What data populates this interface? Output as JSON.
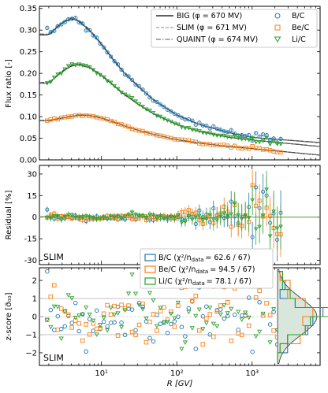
{
  "chart_data": [
    {
      "type": "scatter",
      "panel": "top",
      "ylabel": "Flux ratio [-]",
      "xscale": "log",
      "xlim": [
        1.5,
        8000
      ],
      "ylim": [
        0.0,
        0.355
      ],
      "yticks": [
        "0.00",
        "0.05",
        "0.10",
        "0.15",
        "0.20",
        "0.25",
        "0.30",
        "0.35"
      ],
      "models": [
        {
          "name": "BIG (φ = 670 MV)",
          "style": "solid"
        },
        {
          "name": "SLIM (φ = 671 MV)",
          "style": "dashed"
        },
        {
          "name": "QUAINT (φ = 674 MV)",
          "style": "dashdot"
        }
      ],
      "series": [
        {
          "name": "B/C",
          "color": "#1f77b4",
          "marker": "circle",
          "x": [
            2,
            3,
            4,
            5,
            7,
            10,
            15,
            20,
            30,
            50,
            100,
            200,
            500,
            1000,
            2000
          ],
          "y": [
            0.29,
            0.318,
            0.328,
            0.322,
            0.3,
            0.268,
            0.228,
            0.202,
            0.172,
            0.138,
            0.104,
            0.082,
            0.063,
            0.052,
            0.048
          ]
        },
        {
          "name": "Be/C",
          "color": "#ff7f0e",
          "marker": "square",
          "x": [
            2,
            3,
            4,
            5,
            7,
            10,
            15,
            20,
            30,
            50,
            100,
            200,
            500,
            1000
          ],
          "y": [
            0.091,
            0.097,
            0.101,
            0.104,
            0.103,
            0.097,
            0.087,
            0.079,
            0.069,
            0.059,
            0.047,
            0.039,
            0.031,
            0.026
          ]
        },
        {
          "name": "Li/C",
          "color": "#2ca02c",
          "marker": "triangle-down",
          "x": [
            2,
            3,
            4,
            5,
            7,
            10,
            15,
            20,
            30,
            50,
            100,
            200,
            500,
            1000,
            2000
          ],
          "y": [
            0.178,
            0.205,
            0.218,
            0.221,
            0.214,
            0.196,
            0.17,
            0.152,
            0.13,
            0.106,
            0.082,
            0.066,
            0.052,
            0.046,
            0.041
          ]
        }
      ],
      "legend": "top-right"
    },
    {
      "type": "scatter",
      "panel": "middle",
      "ylabel": "Residual [%]",
      "ylim": [
        -33,
        36
      ],
      "yticks": [
        "-30",
        "-15",
        "0",
        "15",
        "30"
      ],
      "annotation": "SLIM"
    },
    {
      "type": "scatter",
      "panel": "bottom",
      "ylabel": "z-score [σ̃₀₀]",
      "xlabel": "R [GV]",
      "xticks": [
        "10¹",
        "10²",
        "10³"
      ],
      "ylim": [
        -2.7,
        2.7
      ],
      "yticks": [
        "−2",
        "−1",
        "0",
        "1",
        "2"
      ],
      "annotation": "SLIM",
      "legend_entries": [
        {
          "label": "B/C (χ²/n_data = 62.6 / 67)",
          "color": "#1f77b4"
        },
        {
          "label": "Be/C (χ²/n_data = 94.5 / 67)",
          "color": "#ff7f0e"
        },
        {
          "label": "Li/C (χ²/n_data = 78.1 / 67)",
          "color": "#2ca02c"
        }
      ]
    }
  ],
  "text": {
    "top_ylabel": "Flux ratio [-]",
    "mid_ylabel": "Residual [%]",
    "bot_ylabel": "z-score [σ̃₀₀]",
    "xlabel": "R [GV]",
    "mid_tag": "SLIM",
    "bot_tag": "SLIM",
    "leg_big": "BIG (φ = 670 MV)",
    "leg_slim": "SLIM (φ = 671 MV)",
    "leg_quaint": "QUAINT (φ = 674 MV)",
    "leg_bc": "B/C",
    "leg_bec": "Be/C",
    "leg_lic": "Li/C",
    "z_bc": "B/C (χ²/n",
    "z_bec": "Be/C (χ²/n",
    "z_lic": "Li/C (χ²/n",
    "z_bc_val": "= 62.6 / 67)",
    "z_bec_val": "= 94.5 / 67)",
    "z_lic_val": "= 78.1 / 67)",
    "data_sub": "data"
  },
  "colors": {
    "bc": "#1f77b4",
    "bec": "#ff7f0e",
    "lic": "#2ca02c"
  }
}
